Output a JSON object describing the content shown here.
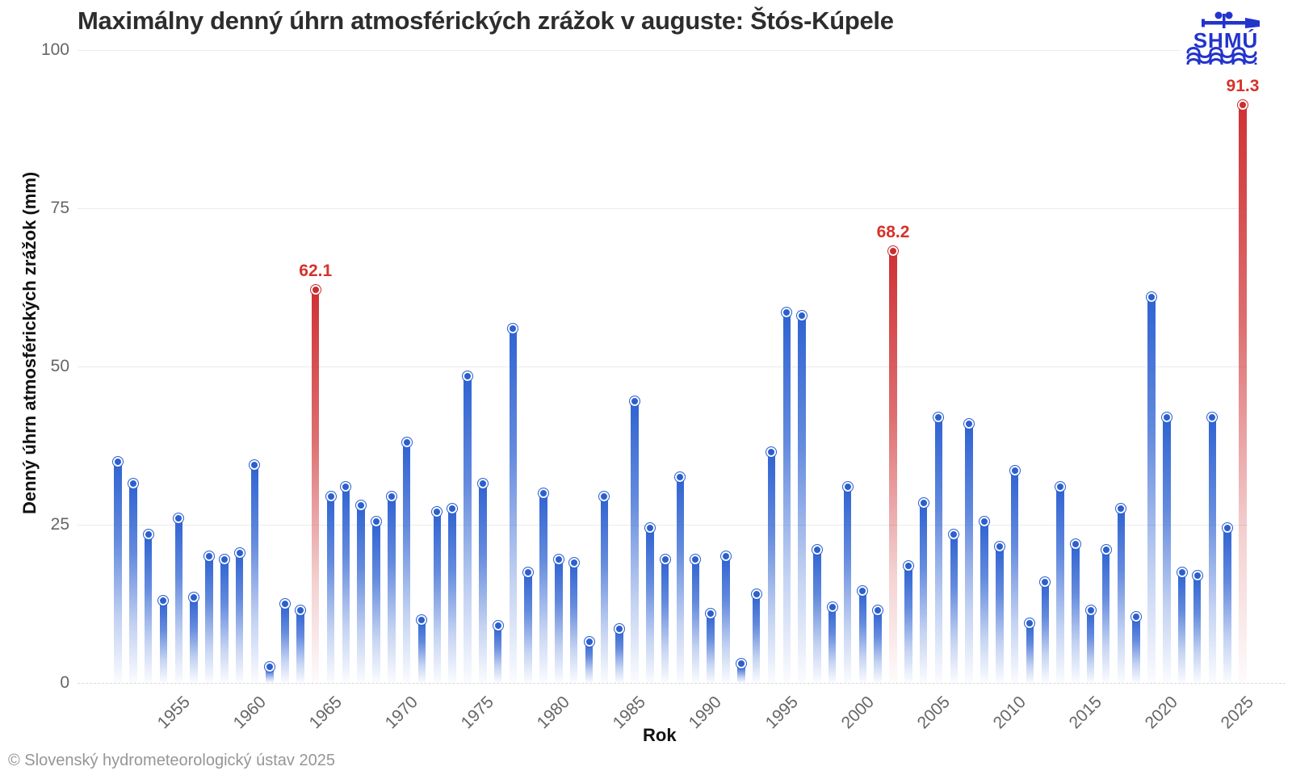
{
  "header": {
    "title": "Maximálny denný úhrn atmosférických zrážok v auguste: Štós-Kúpele"
  },
  "logo": {
    "name": "shmu-logo",
    "text": "SHMÚ",
    "color": "#2334cc"
  },
  "footer": {
    "copyright": "© Slovenský hydrometeorologický ústav 2025"
  },
  "chart_data": {
    "type": "bar",
    "title": "Maximálny denný úhrn atmosférických zrážok v auguste: Štós-Kúpele",
    "xlabel": "Rok",
    "ylabel": "Denný úhrn atmosférických zrážok (mm)",
    "ylim": [
      0,
      100
    ],
    "yticks": [
      0,
      25,
      50,
      75,
      100
    ],
    "xticks": [
      1955,
      1960,
      1965,
      1970,
      1975,
      1980,
      1985,
      1990,
      1995,
      2000,
      2005,
      2010,
      2015,
      2020,
      2025
    ],
    "grid": "horizontal",
    "legend": "none",
    "bar_color": "#2f63d2",
    "highlight_color": "#cf3134",
    "years": [
      1951,
      1952,
      1953,
      1954,
      1955,
      1956,
      1957,
      1958,
      1959,
      1960,
      1961,
      1962,
      1963,
      1964,
      1965,
      1966,
      1967,
      1968,
      1969,
      1970,
      1971,
      1972,
      1973,
      1974,
      1975,
      1976,
      1977,
      1978,
      1979,
      1980,
      1981,
      1982,
      1983,
      1984,
      1985,
      1986,
      1987,
      1988,
      1989,
      1990,
      1991,
      1992,
      1993,
      1994,
      1995,
      1996,
      1997,
      1998,
      1999,
      2000,
      2001,
      2002,
      2003,
      2004,
      2005,
      2006,
      2007,
      2008,
      2009,
      2010,
      2011,
      2012,
      2013,
      2014,
      2015,
      2016,
      2017,
      2018,
      2019,
      2020,
      2021,
      2022,
      2023,
      2024,
      2025
    ],
    "values": [
      35,
      31.5,
      23.5,
      13,
      26,
      13.5,
      20,
      19.5,
      20.5,
      34.5,
      2.5,
      12.5,
      11.5,
      62.1,
      29.5,
      31,
      28,
      25.5,
      29.5,
      38,
      10,
      27,
      27.5,
      48.5,
      31.5,
      9,
      56,
      17.5,
      30,
      19.5,
      19,
      6.5,
      29.5,
      8.5,
      44.5,
      24.5,
      19.5,
      32.5,
      19.5,
      11,
      20,
      3,
      14,
      36.5,
      58.5,
      58,
      21,
      12,
      31,
      14.5,
      11.5,
      68.2,
      18.5,
      28.5,
      42,
      23.5,
      41,
      25.5,
      21.5,
      33.5,
      9.5,
      16,
      31,
      22,
      11.5,
      21,
      27.5,
      10.5,
      61,
      42,
      17.5,
      17,
      42,
      24.5,
      91.3
    ],
    "highlighted_years": [
      1964,
      2002,
      2025
    ],
    "highlight_labels": [
      {
        "year": 1964,
        "label": "62.1"
      },
      {
        "year": 2002,
        "label": "68.2"
      },
      {
        "year": 2025,
        "label": "91.3"
      }
    ]
  }
}
